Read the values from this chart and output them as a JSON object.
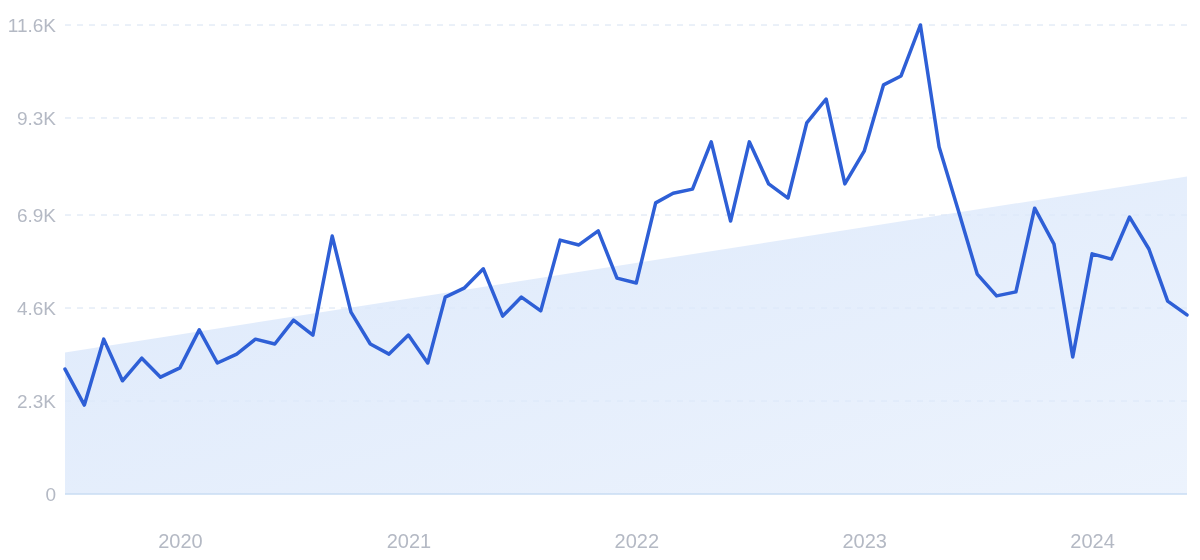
{
  "chart_data": {
    "type": "line",
    "x": [
      "2019-07",
      "2019-08",
      "2019-09",
      "2019-10",
      "2019-11",
      "2019-12",
      "2020-01",
      "2020-02",
      "2020-03",
      "2020-04",
      "2020-05",
      "2020-06",
      "2020-07",
      "2020-08",
      "2020-09",
      "2020-10",
      "2020-11",
      "2020-12",
      "2021-01",
      "2021-02",
      "2021-03",
      "2021-04",
      "2021-05",
      "2021-06",
      "2021-07",
      "2021-08",
      "2021-09",
      "2021-10",
      "2021-11",
      "2021-12",
      "2022-01",
      "2022-02",
      "2022-03",
      "2022-04",
      "2022-05",
      "2022-06",
      "2022-07",
      "2022-08",
      "2022-09",
      "2022-10",
      "2022-11",
      "2022-12",
      "2023-01",
      "2023-02",
      "2023-03",
      "2023-04",
      "2023-05",
      "2023-06",
      "2023-07",
      "2023-08",
      "2023-09",
      "2023-10",
      "2023-11",
      "2023-12",
      "2024-01",
      "2024-02",
      "2024-03",
      "2024-04",
      "2024-05",
      "2024-06"
    ],
    "series": [
      {
        "type": "area",
        "color": "#dde9fb",
        "x": [
          "2019-07",
          "2024-06"
        ],
        "values": [
          3500,
          7850
        ]
      },
      {
        "color": "#2e5fd6",
        "values": [
          3090,
          2200,
          3830,
          2800,
          3360,
          2890,
          3120,
          4060,
          3240,
          3460,
          3830,
          3710,
          4300,
          3930,
          6380,
          4500,
          3710,
          3460,
          3930,
          3240,
          4870,
          5100,
          5570,
          4400,
          4870,
          4530,
          6280,
          6160,
          6510,
          5340,
          5220,
          7200,
          7440,
          7540,
          8710,
          6750,
          8710,
          7670,
          7320,
          9180,
          9770,
          7670,
          8480,
          10120,
          10340,
          11600,
          8580,
          7000,
          5440,
          4900,
          5000,
          7070,
          6180,
          3390,
          5940,
          5810,
          6850,
          6060,
          4770,
          4430
        ]
      }
    ],
    "xlim": [
      "2019-07",
      "2024-06"
    ],
    "xticks": [
      {
        "value": "2020-01",
        "label": "2020"
      },
      {
        "value": "2021-01",
        "label": "2021"
      },
      {
        "value": "2022-01",
        "label": "2022"
      },
      {
        "value": "2023-01",
        "label": "2023"
      },
      {
        "value": "2024-01",
        "label": "2024"
      }
    ],
    "ylim": [
      0,
      11600
    ],
    "yticks": [
      0,
      {
        "value": 2300,
        "label": "2.3K"
      },
      {
        "value": 4600,
        "label": "4.6K"
      },
      {
        "value": 6900,
        "label": "6.9K"
      },
      {
        "value": 9300,
        "label": "9.3K"
      },
      {
        "value": 11600,
        "label": "11.6K"
      }
    ],
    "grid": "y",
    "marker": "none",
    "line_style": "solid"
  }
}
